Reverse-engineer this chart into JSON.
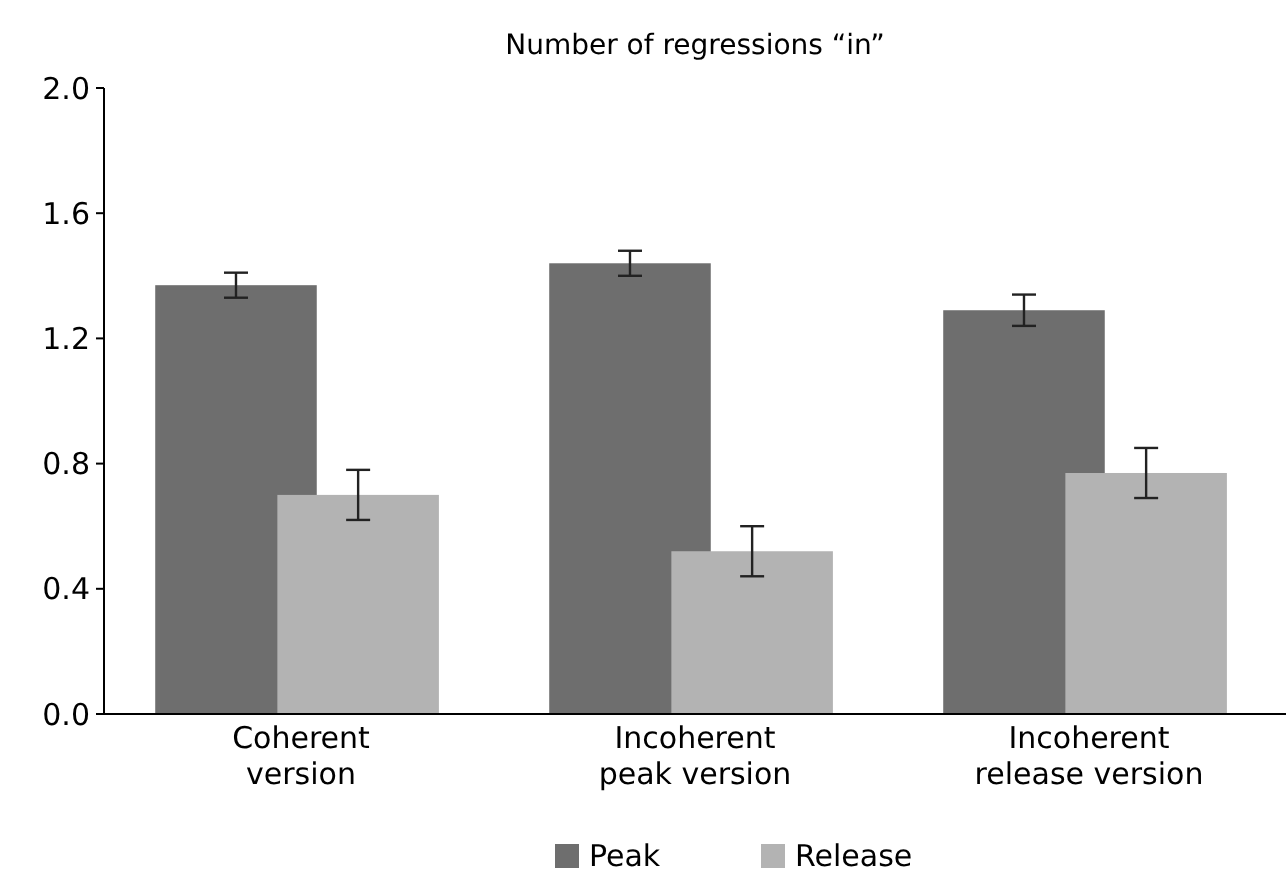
{
  "chart_data": {
    "type": "bar",
    "title": "Number of regressions “in”",
    "categories": [
      "Coherent version",
      "Incoherent peak version",
      "Incoherent release version"
    ],
    "series": [
      {
        "name": "Peak",
        "color": "#6e6e6e",
        "values": [
          1.37,
          1.44,
          1.29
        ],
        "errors": [
          0.04,
          0.04,
          0.05
        ]
      },
      {
        "name": "Release",
        "color": "#b3b3b3",
        "values": [
          0.7,
          0.52,
          0.77
        ],
        "errors": [
          0.08,
          0.08,
          0.08
        ]
      }
    ],
    "ylim": [
      0,
      2
    ],
    "yticks": [
      {
        "value": 0,
        "label": "0.0"
      },
      {
        "value": 0.4,
        "label": "0.4"
      },
      {
        "value": 0.8,
        "label": "0.8"
      },
      {
        "value": 1.2,
        "label": "1.2"
      },
      {
        "value": 1.6,
        "label": "1.6"
      },
      {
        "value": 2,
        "label": "2.0"
      }
    ],
    "grid": false,
    "legend": "bottom"
  }
}
